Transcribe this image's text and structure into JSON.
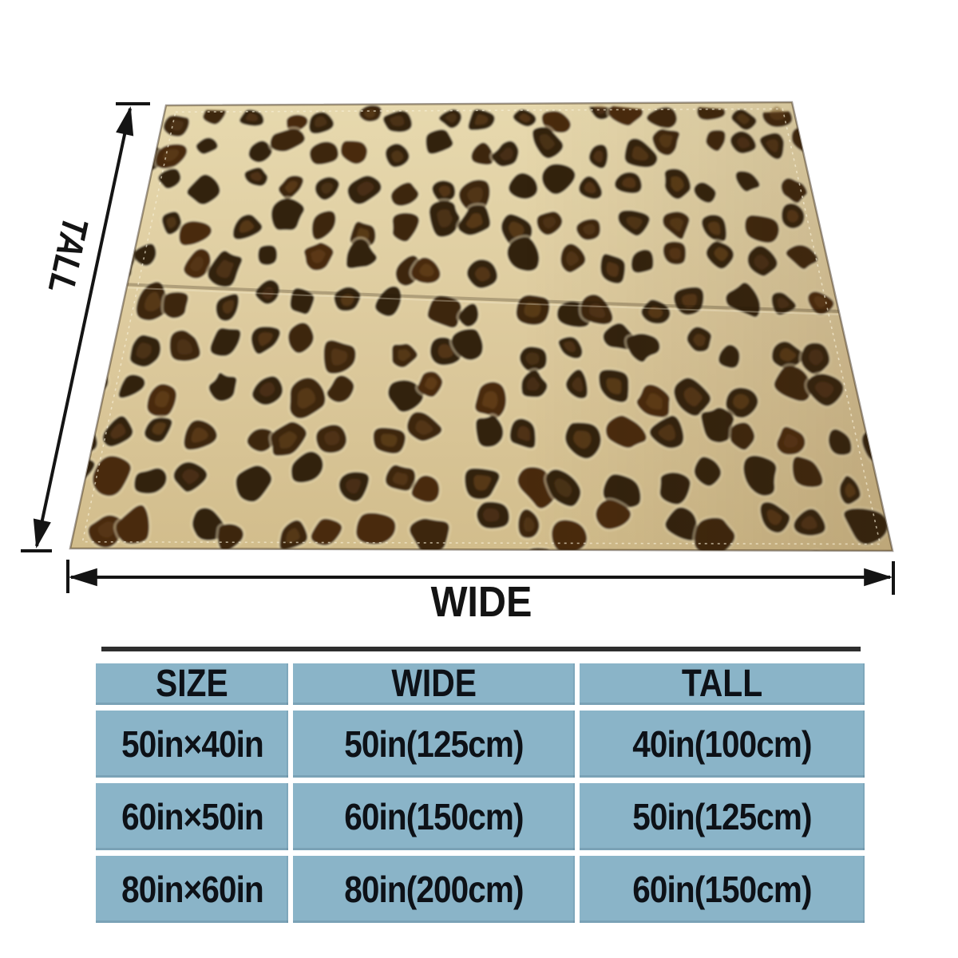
{
  "dimension_labels": {
    "tall": "TALL",
    "wide": "WIDE"
  },
  "size_table": {
    "headers": [
      "SIZE",
      "WIDE",
      "TALL"
    ],
    "rows": [
      [
        "50in×40in",
        "50in(125cm)",
        "40in(100cm)"
      ],
      [
        "60in×50in",
        "60in(150cm)",
        "50in(125cm)"
      ],
      [
        "80in×60in",
        "80in(200cm)",
        "60in(150cm)"
      ]
    ]
  },
  "colors": {
    "table_cell": "#8ab4c8",
    "table_text": "#0d1117",
    "table_top_bar": "#2e2e2e",
    "annotation": "#141414",
    "blanket_tan": "#d8c596",
    "blanket_tan_light": "#e8dab0",
    "patch_dark": "#33200e",
    "patch_mid": "#3e2711",
    "patch_deep": "#48290e",
    "patch_rust": "#6f4a1d",
    "halo": "#f0e4bc"
  }
}
